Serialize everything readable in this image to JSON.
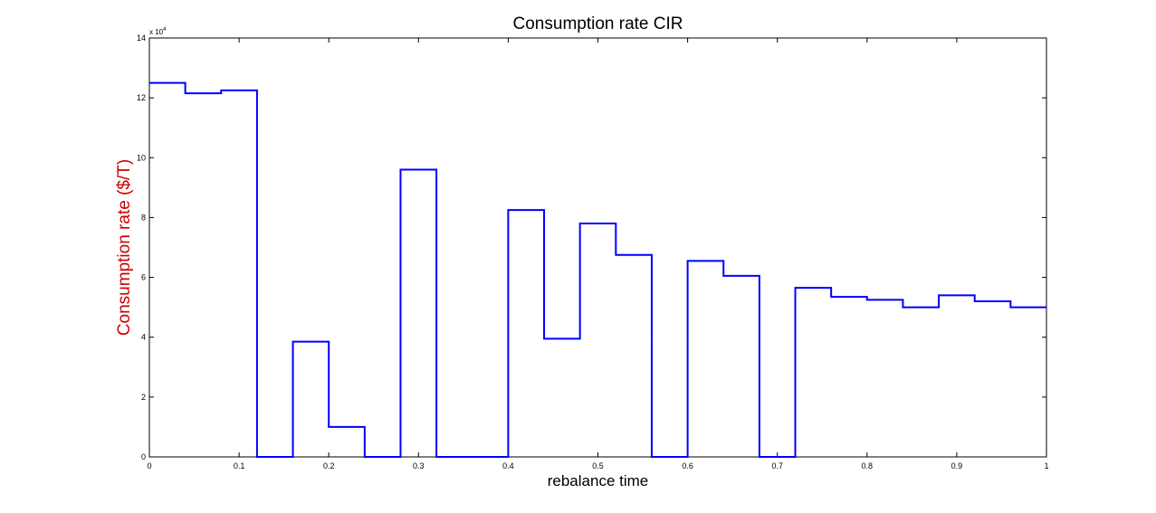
{
  "chart_data": {
    "type": "line",
    "step": "post",
    "title": "Consumption rate CIR",
    "xlabel": "rebalance time",
    "ylabel": "Consumption rate ($/T)",
    "ylabel_color": "#cc0000",
    "line_color": "#0000ff",
    "xlim": [
      0,
      1
    ],
    "ylim": [
      0,
      140000
    ],
    "y_exponent_label": "x 10",
    "y_exponent_power": "4",
    "xticks": [
      "0",
      "0.1",
      "0.2",
      "0.3",
      "0.4",
      "0.5",
      "0.6",
      "0.7",
      "0.8",
      "0.9",
      "1"
    ],
    "yticks": [
      "0",
      "2",
      "4",
      "6",
      "8",
      "10",
      "12",
      "14"
    ],
    "grid": false,
    "box": true,
    "series": [
      {
        "x": [
          0,
          0.04,
          0.08,
          0.12,
          0.16,
          0.2,
          0.24,
          0.28,
          0.32,
          0.36,
          0.4,
          0.44,
          0.48,
          0.52,
          0.56,
          0.6,
          0.64,
          0.68,
          0.72,
          0.76,
          0.8,
          0.84,
          0.88,
          0.92,
          0.96,
          1.0
        ],
        "y": [
          125000,
          121500,
          122500,
          0,
          38500,
          10000,
          0,
          96000,
          0,
          0,
          82500,
          39500,
          78000,
          67500,
          0,
          65500,
          60500,
          0,
          56500,
          53500,
          52500,
          50000,
          54000,
          52000,
          50000,
          50000
        ]
      }
    ]
  }
}
